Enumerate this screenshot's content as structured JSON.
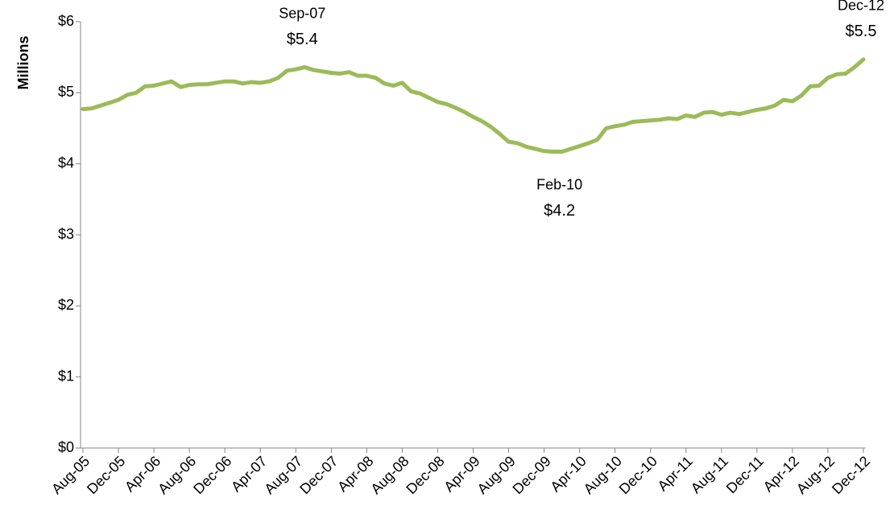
{
  "chart_data": {
    "type": "line",
    "y_label": "Millions",
    "categories": [
      "Aug-05",
      null,
      null,
      null,
      "Dec-05",
      null,
      null,
      null,
      "Apr-06",
      null,
      null,
      null,
      "Aug-06",
      null,
      null,
      null,
      "Dec-06",
      null,
      null,
      null,
      "Apr-07",
      null,
      null,
      null,
      "Aug-07",
      null,
      null,
      null,
      "Dec-07",
      null,
      null,
      null,
      "Apr-08",
      null,
      null,
      null,
      "Aug-08",
      null,
      null,
      null,
      "Dec-08",
      null,
      null,
      null,
      "Apr-09",
      null,
      null,
      null,
      "Aug-09",
      null,
      null,
      null,
      "Dec-09",
      null,
      null,
      null,
      "Apr-10",
      null,
      null,
      null,
      "Aug-10",
      null,
      null,
      null,
      "Dec-10",
      null,
      null,
      null,
      "Apr-11",
      null,
      null,
      null,
      "Aug-11",
      null,
      null,
      null,
      "Dec-11",
      null,
      null,
      null,
      "Apr-12",
      null,
      null,
      null,
      "Aug-12",
      null,
      null,
      null,
      "Dec-12"
    ],
    "series": [
      {
        "color": "#9bbb59",
        "values": [
          4.77,
          4.78,
          4.82,
          4.86,
          4.9,
          4.97,
          5.0,
          5.09,
          5.1,
          5.13,
          5.16,
          5.08,
          5.11,
          5.12,
          5.12,
          5.14,
          5.16,
          5.16,
          5.13,
          5.15,
          5.14,
          5.16,
          5.21,
          5.31,
          5.33,
          5.36,
          5.32,
          5.3,
          5.28,
          5.27,
          5.29,
          5.24,
          5.24,
          5.21,
          5.13,
          5.1,
          5.14,
          5.02,
          4.99,
          4.93,
          4.87,
          4.84,
          4.79,
          4.73,
          4.66,
          4.6,
          4.52,
          4.42,
          4.31,
          4.29,
          4.24,
          4.21,
          4.18,
          4.17,
          4.17,
          4.21,
          4.25,
          4.29,
          4.34,
          4.5,
          4.53,
          4.55,
          4.59,
          4.6,
          4.61,
          4.62,
          4.64,
          4.63,
          4.68,
          4.66,
          4.72,
          4.73,
          4.69,
          4.72,
          4.7,
          4.73,
          4.76,
          4.78,
          4.82,
          4.9,
          4.88,
          4.96,
          5.09,
          5.1,
          5.21,
          5.26,
          5.27,
          5.36,
          5.47
        ]
      }
    ],
    "annotations": [
      {
        "text": "Sep-07",
        "value_label": "$5.4",
        "index": 25,
        "position": "above"
      },
      {
        "text": "Feb-10",
        "value_label": "$4.2",
        "index": 54,
        "position": "below"
      },
      {
        "text": "Dec-12",
        "value_label": "$5.5",
        "index": 88,
        "position": "above"
      }
    ],
    "ylim": [
      0,
      6
    ],
    "yticks": [
      {
        "value": 0,
        "label": "$0"
      },
      {
        "value": 1,
        "label": "$1"
      },
      {
        "value": 2,
        "label": "$2"
      },
      {
        "value": 3,
        "label": "$3"
      },
      {
        "value": 4,
        "label": "$4"
      },
      {
        "value": 5,
        "label": "$5"
      },
      {
        "value": 6,
        "label": "$6"
      }
    ],
    "grid": false
  }
}
